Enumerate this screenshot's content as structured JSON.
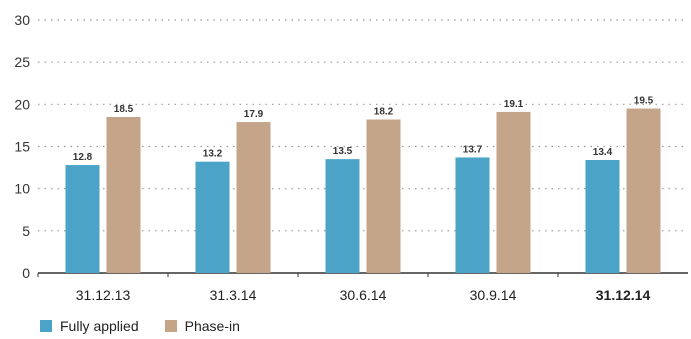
{
  "chart_data": {
    "type": "bar",
    "categories": [
      "31.12.13",
      "31.3.14",
      "30.6.14",
      "30.9.14",
      "31.12.14"
    ],
    "highlight_category": "31.12.14",
    "series": [
      {
        "name": "Fully applied",
        "values": [
          12.8,
          13.2,
          13.5,
          13.7,
          13.4
        ],
        "color": "#4ba3c7"
      },
      {
        "name": "Phase-in",
        "values": [
          18.5,
          17.9,
          18.2,
          19.1,
          19.5
        ],
        "color": "#c4a58a"
      }
    ],
    "data_labels": [
      [
        "12.8",
        "13.2",
        "13.5",
        "13.7",
        "13.4"
      ],
      [
        "18.5",
        "17.9",
        "18.2",
        "19.1",
        "19.5"
      ]
    ],
    "yticks": [
      "0",
      "5",
      "10",
      "15",
      "20",
      "25",
      "30"
    ],
    "ylim": [
      0,
      30
    ],
    "grid": "dotted-horizontal",
    "legend_position": "bottom-left",
    "title": "",
    "xlabel": "",
    "ylabel": ""
  }
}
